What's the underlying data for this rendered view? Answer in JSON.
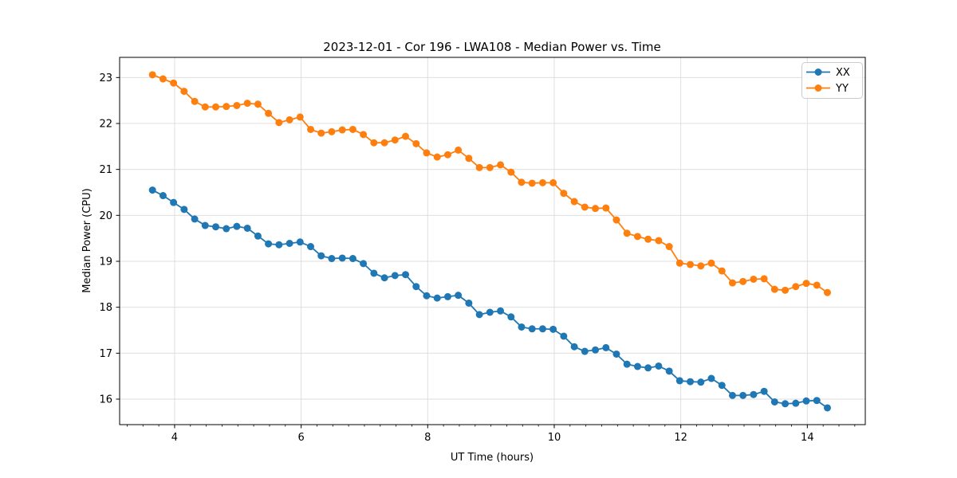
{
  "title": "2023-12-01 - Cor 196 - LWA108 - Median Power vs. Time",
  "chart_data": {
    "type": "line",
    "title": "2023-12-01 - Cor 196 - LWA108 - Median Power vs. Time",
    "xlabel": "UT Time (hours)",
    "ylabel": "Median Power (CPU)",
    "xlim": [
      3.131,
      14.916
    ],
    "ylim": [
      15.445,
      23.439
    ],
    "x_ticks": [
      4,
      6,
      8,
      10,
      12,
      14
    ],
    "x_minor_tick_step": 0.25,
    "y_ticks": [
      16,
      17,
      18,
      19,
      20,
      21,
      22,
      23
    ],
    "grid": true,
    "grid_color": "#dcdcdc",
    "legend_position": "upper right",
    "background_color": "#ffffff",
    "x": [
      3.65,
      3.817,
      3.983,
      4.15,
      4.317,
      4.483,
      4.65,
      4.817,
      4.983,
      5.15,
      5.317,
      5.483,
      5.65,
      5.817,
      5.983,
      6.15,
      6.317,
      6.483,
      6.65,
      6.817,
      6.983,
      7.15,
      7.317,
      7.483,
      7.65,
      7.817,
      7.983,
      8.15,
      8.317,
      8.483,
      8.65,
      8.817,
      8.983,
      9.15,
      9.317,
      9.483,
      9.65,
      9.817,
      9.983,
      10.15,
      10.317,
      10.483,
      10.65,
      10.817,
      10.983,
      11.15,
      11.317,
      11.483,
      11.65,
      11.817,
      11.983,
      12.15,
      12.317,
      12.483,
      12.65,
      12.817,
      12.983,
      13.15,
      13.317,
      13.483,
      13.65,
      13.817,
      13.983,
      14.15,
      14.317
    ],
    "series": [
      {
        "name": "XX",
        "color": "#1f77b4",
        "marker": "circle",
        "values": [
          20.55,
          20.43,
          20.28,
          20.13,
          19.92,
          19.78,
          19.75,
          19.71,
          19.76,
          19.72,
          19.55,
          19.38,
          19.36,
          19.39,
          19.42,
          19.32,
          19.12,
          19.06,
          19.07,
          19.06,
          18.95,
          18.74,
          18.64,
          18.69,
          18.71,
          18.45,
          18.25,
          18.2,
          18.23,
          18.26,
          18.09,
          17.84,
          17.89,
          17.92,
          17.79,
          17.57,
          17.53,
          17.53,
          17.52,
          17.37,
          17.14,
          17.04,
          17.07,
          17.12,
          16.98,
          16.76,
          16.71,
          16.68,
          16.72,
          16.61,
          16.4,
          16.38,
          16.37,
          16.45,
          16.3,
          16.08,
          16.08,
          16.1,
          16.17,
          15.94,
          15.9,
          15.91,
          15.96,
          15.97,
          15.81
        ]
      },
      {
        "name": "YY",
        "color": "#ff7f0e",
        "marker": "circle",
        "values": [
          23.06,
          22.97,
          22.88,
          22.7,
          22.48,
          22.36,
          22.36,
          22.37,
          22.39,
          22.44,
          22.42,
          22.22,
          22.02,
          22.08,
          22.14,
          21.87,
          21.79,
          21.82,
          21.86,
          21.87,
          21.76,
          21.58,
          21.58,
          21.64,
          21.72,
          21.56,
          21.36,
          21.27,
          21.32,
          21.42,
          21.24,
          21.04,
          21.04,
          21.1,
          20.94,
          20.72,
          20.7,
          20.71,
          20.71,
          20.48,
          20.3,
          20.18,
          20.15,
          20.16,
          19.9,
          19.61,
          19.54,
          19.48,
          19.45,
          19.32,
          18.96,
          18.93,
          18.9,
          18.96,
          18.79,
          18.53,
          18.56,
          18.61,
          18.62,
          18.39,
          18.37,
          18.45,
          18.52,
          18.48,
          18.32
        ]
      }
    ]
  }
}
